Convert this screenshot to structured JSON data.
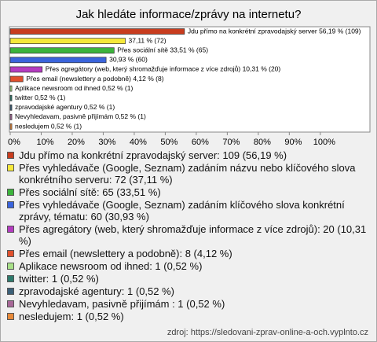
{
  "chart_data": {
    "type": "bar",
    "orientation": "horizontal",
    "title": "Jak hledáte informace/zprávy na internetu?",
    "series": [
      {
        "values": [
          56.19,
          37.11,
          33.51,
          30.93,
          10.31,
          4.12,
          0.52,
          0.52,
          0.52,
          0.52,
          0.52
        ],
        "value_labels": [
          "Jdu přímo na konkrétní zpravodajský server 56,19 % (109)",
          "37,11 % (72)",
          "Přes sociální sítě 33,51 % (65)",
          "30,93 % (60)",
          "Přes agregátory (web, který shromažďuje informace z více zdrojů) 10,31 % (20)",
          "Přes email (newslettery a podobně) 4,12 % (8)",
          "Aplikace newsroom od ihned 0,52 % (1)",
          "twitter 0,52 % (1)",
          "zpravodajské agentury 0,52 % (1)",
          "Nevyhledavam, pasivně přijímám  0,52 % (1)",
          "nesledujem 0,52 % (1)"
        ],
        "legend_labels": [
          "Jdu přímo na konkrétní zpravodajský server: 109 (56,19 %)",
          "Přes vyhledávače (Google, Seznam) zadáním názvu nebo klíčového slova konkrétního serveru: 72 (37,11 %)",
          "Přes sociální sítě: 65 (33,51 %)",
          "Přes vyhledávače (Google, Seznam) zadáním klíčového slova konkrétní zprávy, tématu: 60 (30,93 %)",
          "Přes agregátory (web, který shromažďuje informace z více zdrojů): 20 (10,31 %)",
          "Přes email (newslettery a podobně): 8 (4,12 %)",
          "Aplikace newsroom od ihned: 1 (0,52 %)",
          "twitter: 1 (0,52 %)",
          "zpravodajské agentury: 1 (0,52 %)",
          "Nevyhledavam, pasivně přijímám : 1 (0,52 %)",
          "nesledujem: 1 (0,52 %)"
        ],
        "colors": [
          "#c83c1e",
          "#f5e83a",
          "#3cb43c",
          "#3a64dc",
          "#b43cc0",
          "#e0502d",
          "#a8e088",
          "#2e7a6c",
          "#3c6078",
          "#a86898",
          "#e88a3a"
        ]
      }
    ],
    "xlim": [
      0,
      116
    ],
    "xticks": [
      {
        "value": 0,
        "label": "0%"
      },
      {
        "value": 10,
        "label": "10%"
      },
      {
        "value": 20,
        "label": "20%"
      },
      {
        "value": 30,
        "label": "30%"
      },
      {
        "value": 40,
        "label": "40%"
      },
      {
        "value": 50,
        "label": "50%"
      },
      {
        "value": 60,
        "label": "60%"
      },
      {
        "value": 70,
        "label": "70%"
      },
      {
        "value": 80,
        "label": "80%"
      },
      {
        "value": 90,
        "label": "90%"
      },
      {
        "value": 100,
        "label": "100%"
      }
    ],
    "source": "zdroj: https://sledovani-zprav-online-a-och.vyplnto.cz"
  }
}
